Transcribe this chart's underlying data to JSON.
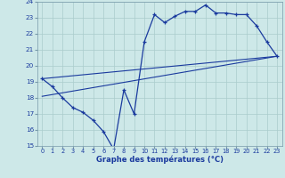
{
  "xlabel": "Graphe des températures (°C)",
  "background_color": "#cde8e8",
  "grid_color": "#aacccc",
  "line_color": "#1a3a9e",
  "xlim": [
    -0.5,
    23.5
  ],
  "ylim": [
    15,
    24
  ],
  "yticks": [
    15,
    16,
    17,
    18,
    19,
    20,
    21,
    22,
    23,
    24
  ],
  "xticks": [
    0,
    1,
    2,
    3,
    4,
    5,
    6,
    7,
    8,
    9,
    10,
    11,
    12,
    13,
    14,
    15,
    16,
    17,
    18,
    19,
    20,
    21,
    22,
    23
  ],
  "line1_x": [
    0,
    1,
    2,
    3,
    4,
    5,
    6,
    7,
    8,
    9,
    10,
    11,
    12,
    13,
    14,
    15,
    16,
    17,
    18,
    19,
    20,
    21,
    22,
    23
  ],
  "line1_y": [
    19.2,
    18.7,
    18.0,
    17.4,
    17.1,
    16.6,
    15.9,
    14.8,
    18.5,
    17.0,
    21.5,
    23.2,
    22.7,
    23.1,
    23.4,
    23.4,
    23.8,
    23.3,
    23.3,
    23.2,
    23.2,
    22.5,
    21.5,
    20.6
  ],
  "line2_x": [
    0,
    23
  ],
  "line2_y": [
    19.2,
    20.6
  ],
  "line3_x": [
    0,
    23
  ],
  "line3_y": [
    18.1,
    20.6
  ]
}
